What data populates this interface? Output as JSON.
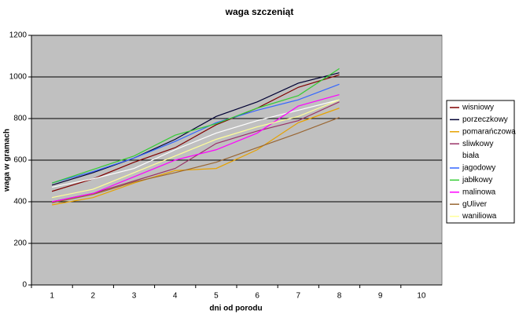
{
  "chart_data": {
    "type": "line",
    "title": "waga szczeniąt",
    "x_label": "dni od porodu",
    "y_label": "waga w gramach",
    "categories": [
      1,
      2,
      3,
      4,
      5,
      6,
      7,
      8,
      9,
      10
    ],
    "ylim": [
      0,
      1200
    ],
    "yticks": [
      0,
      200,
      400,
      600,
      800,
      1000,
      1200
    ],
    "grid": true,
    "legend": "right",
    "series": [
      {
        "name": "wisniowy",
        "color": "#800000",
        "values": [
          450,
          510,
          590,
          660,
          770,
          850,
          950,
          1010,
          null,
          null
        ]
      },
      {
        "name": "porzeczkowy",
        "color": "#000033",
        "values": [
          480,
          540,
          610,
          700,
          810,
          880,
          970,
          1020,
          null,
          null
        ]
      },
      {
        "name": "pomarańczowa",
        "color": "#e6a100",
        "values": [
          385,
          420,
          490,
          550,
          560,
          650,
          780,
          850,
          null,
          null
        ]
      },
      {
        "name": "sliwkowy",
        "color": "#993366",
        "values": [
          400,
          440,
          500,
          560,
          680,
          740,
          790,
          880,
          null,
          null
        ]
      },
      {
        "name": "biała",
        "color": "#ffffff",
        "values": [
          470,
          510,
          560,
          650,
          730,
          790,
          840,
          890,
          null,
          null
        ]
      },
      {
        "name": "jagodowy",
        "color": "#3366ff",
        "values": [
          490,
          545,
          610,
          690,
          780,
          840,
          890,
          965,
          null,
          null
        ]
      },
      {
        "name": "jabłkowy",
        "color": "#33cc33",
        "values": [
          490,
          555,
          620,
          720,
          775,
          850,
          910,
          1040,
          null,
          null
        ]
      },
      {
        "name": "malinowa",
        "color": "#ff00ff",
        "values": [
          400,
          440,
          520,
          600,
          650,
          730,
          860,
          915,
          null,
          null
        ]
      },
      {
        "name": "gUliver",
        "color": "#996633",
        "values": [
          395,
          435,
          495,
          540,
          590,
          660,
          730,
          805,
          null,
          null
        ]
      },
      {
        "name": "waniliowa",
        "color": "#ffff99",
        "values": [
          420,
          460,
          540,
          620,
          700,
          760,
          810,
          890,
          null,
          null
        ]
      }
    ]
  }
}
